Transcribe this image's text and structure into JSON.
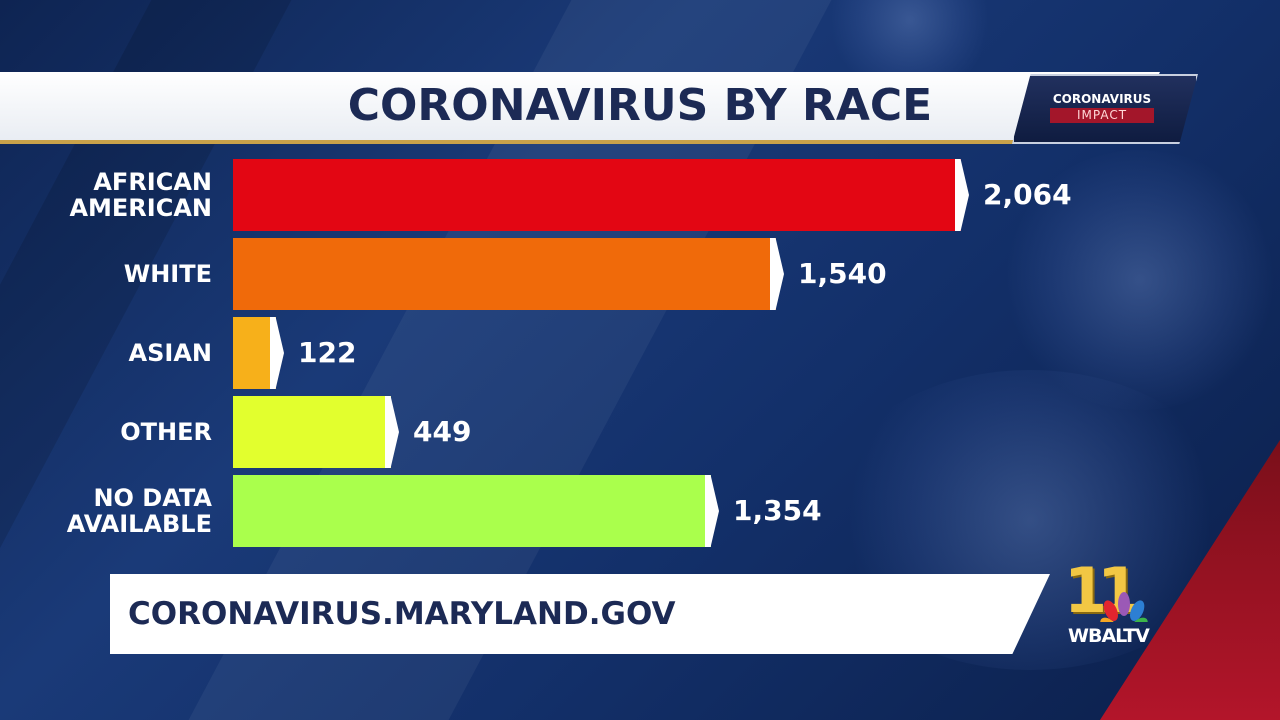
{
  "header": {
    "title": "CORONAVIRUS BY RACE",
    "badge_top": "CORONAVIRUS",
    "badge_bottom": "IMPACT"
  },
  "footer": {
    "url_text": "CORONAVIRUS.MARYLAND.GOV",
    "logo_number": "11",
    "logo_text": "WBALTV"
  },
  "colors": {
    "title_text": "#1c2a55",
    "background": "#13306a"
  },
  "chart_data": {
    "type": "bar",
    "orientation": "horizontal",
    "title": "CORONAVIRUS BY RACE",
    "categories": [
      "AFRICAN\nAMERICAN",
      "WHITE",
      "ASIAN",
      "OTHER",
      "NO DATA\nAVAILABLE"
    ],
    "values": [
      2064,
      1540,
      122,
      449,
      1354
    ],
    "value_labels": [
      "2,064",
      "1,540",
      "122",
      "449",
      "1,354"
    ],
    "colors": [
      "#e30613",
      "#f06a0a",
      "#f7b01a",
      "#e2ff2e",
      "#aaff4c"
    ],
    "xlim": [
      0,
      2064
    ],
    "grid": false
  }
}
